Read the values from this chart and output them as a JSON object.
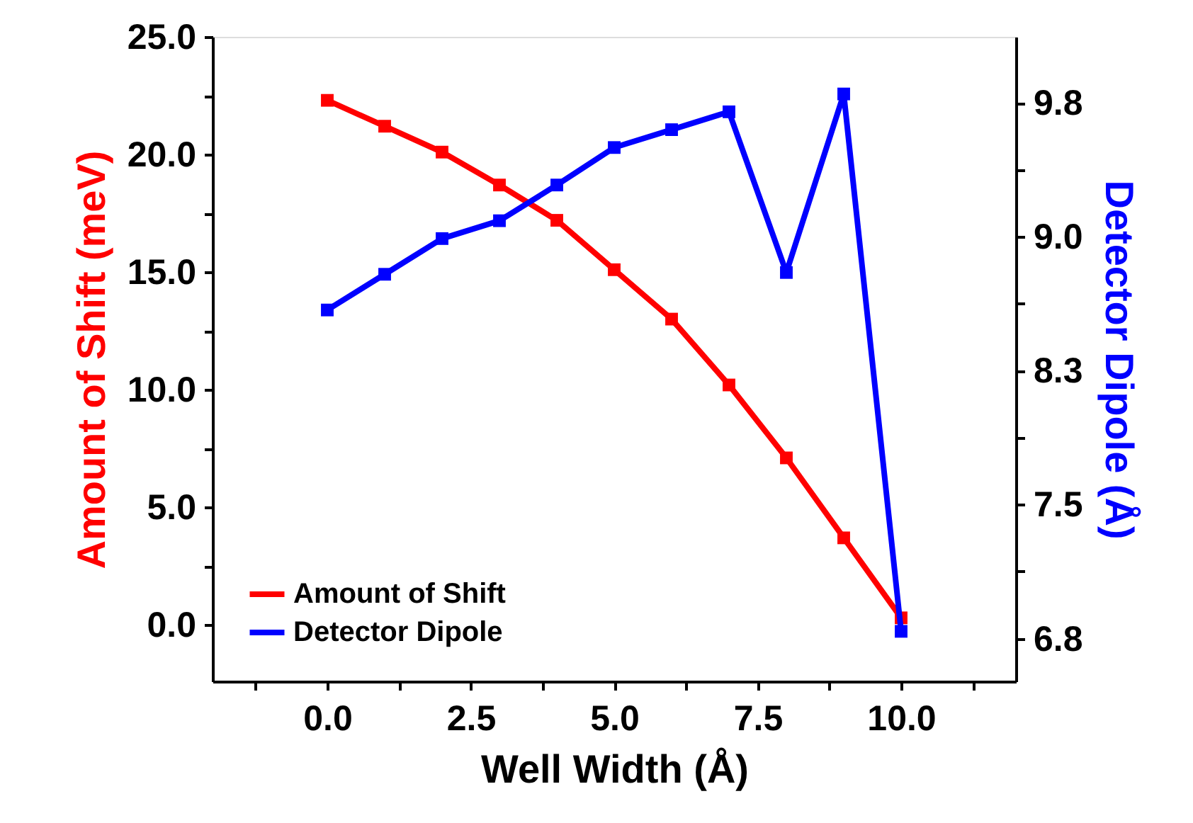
{
  "chart_data": {
    "type": "line",
    "xlabel": "Well Width (Å)",
    "ylabel": "Amount of Shift (meV)",
    "y2label": "Detector Dipole (Å)",
    "x": [
      0,
      1,
      2,
      3,
      4,
      5,
      6,
      7,
      8,
      9,
      10
    ],
    "series": [
      {
        "name": "Amount of Shift",
        "color": "#ff0000",
        "values": [
          22.3,
          21.2,
          20.1,
          18.7,
          17.2,
          15.1,
          13.0,
          10.2,
          7.1,
          3.7,
          0.3
        ]
      },
      {
        "name": "Detector Dipole",
        "color": "#0000ff",
        "axis": "y2",
        "values": [
          8.59,
          8.79,
          8.99,
          9.09,
          9.29,
          9.5,
          9.6,
          9.7,
          8.8,
          9.8,
          6.79
        ]
      }
    ],
    "xlim": [
      -2,
      12
    ],
    "xticks": [
      {
        "value": -1.25,
        "label": null
      },
      {
        "value": 0,
        "label": "0.0"
      },
      {
        "value": 1.25,
        "label": null
      },
      {
        "value": 2.5,
        "label": "2.5"
      },
      {
        "value": 3.75,
        "label": null
      },
      {
        "value": 5,
        "label": "5.0"
      },
      {
        "value": 6.25,
        "label": null
      },
      {
        "value": 7.5,
        "label": "7.5"
      },
      {
        "value": 8.75,
        "label": null
      },
      {
        "value": 10,
        "label": "10.0"
      },
      {
        "value": 11.25,
        "label": null
      }
    ],
    "ylim": [
      -2.4,
      25
    ],
    "yticks": [
      {
        "value": 0,
        "label": "0.0"
      },
      {
        "value": 2.5,
        "label": null
      },
      {
        "value": 5,
        "label": "5.0"
      },
      {
        "value": 7.5,
        "label": null
      },
      {
        "value": 10,
        "label": "10.0"
      },
      {
        "value": 12.5,
        "label": null
      },
      {
        "value": 15,
        "label": "15.0"
      },
      {
        "value": 17.5,
        "label": null
      },
      {
        "value": 20,
        "label": "20.0"
      },
      {
        "value": 22.5,
        "label": null
      },
      {
        "value": 25,
        "label": "25.0"
      }
    ],
    "y2lim": [
      6.51,
      10.12
    ],
    "y2ticks": [
      {
        "value": 6.75,
        "label": "6.8"
      },
      {
        "value": 7.125,
        "label": null
      },
      {
        "value": 7.5,
        "label": "7.5"
      },
      {
        "value": 7.875,
        "label": null
      },
      {
        "value": 8.25,
        "label": "8.3"
      },
      {
        "value": 8.625,
        "label": null
      },
      {
        "value": 9.0,
        "label": "9.0"
      },
      {
        "value": 9.375,
        "label": null
      },
      {
        "value": 9.75,
        "label": "9.8"
      }
    ],
    "grid": false,
    "legend": "bottom left",
    "marker": "square",
    "line_style": "solid"
  }
}
